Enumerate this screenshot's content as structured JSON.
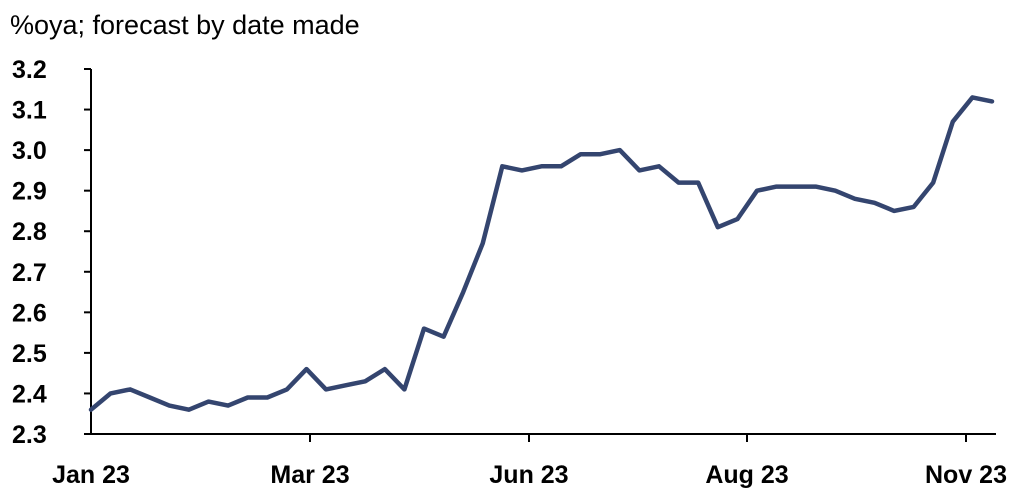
{
  "chart_data": {
    "type": "line",
    "subtitle": "%oya; forecast by date made",
    "ylim": [
      2.3,
      3.2
    ],
    "yticks": [
      "2.3",
      "2.4",
      "2.5",
      "2.6",
      "2.7",
      "2.8",
      "2.9",
      "3.0",
      "3.1",
      "3.2"
    ],
    "xticks": [
      "Jan 23",
      "Mar 23",
      "Jun 23",
      "Aug 23",
      "Nov 23"
    ],
    "grid": false,
    "legend": "none",
    "line_color": "#34456f",
    "series": [
      {
        "values": [
          2.36,
          2.4,
          2.41,
          2.39,
          2.37,
          2.36,
          2.38,
          2.37,
          2.39,
          2.39,
          2.41,
          2.46,
          2.41,
          2.42,
          2.43,
          2.46,
          2.41,
          2.56,
          2.54,
          2.65,
          2.77,
          2.96,
          2.95,
          2.96,
          2.96,
          2.99,
          2.99,
          3.0,
          2.95,
          2.96,
          2.92,
          2.92,
          2.81,
          2.83,
          2.9,
          2.91,
          2.91,
          2.91,
          2.9,
          2.88,
          2.87,
          2.85,
          2.86,
          2.92,
          3.07,
          3.13,
          3.12
        ]
      }
    ]
  }
}
